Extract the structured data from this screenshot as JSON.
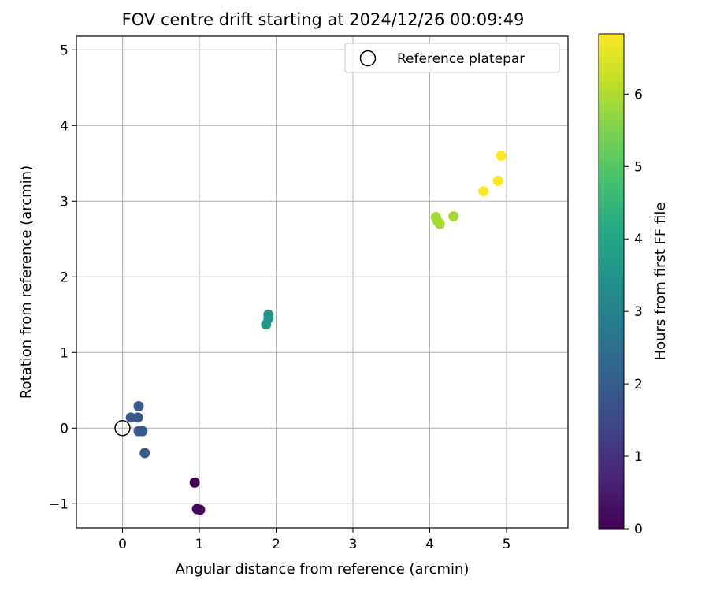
{
  "chart_data": {
    "type": "scatter",
    "title": "FOV centre drift starting at 2024/12/26 00:09:49",
    "xlabel": "Angular distance from reference (arcmin)",
    "ylabel": "Rotation from reference (arcmin)",
    "xlim": [
      -0.6,
      5.8
    ],
    "ylim": [
      -1.32,
      5.18
    ],
    "xticks": [
      0,
      1,
      2,
      3,
      4,
      5
    ],
    "yticks": [
      -1,
      0,
      1,
      2,
      3,
      4,
      5
    ],
    "xtick_labels": [
      "0",
      "1",
      "2",
      "3",
      "4",
      "5"
    ],
    "ytick_labels": [
      "−1",
      "0",
      "1",
      "2",
      "3",
      "4",
      "5"
    ],
    "grid": true,
    "legend": {
      "position": "top-right",
      "entries": [
        "Reference platepar"
      ]
    },
    "reference_point": {
      "x": 0,
      "y": 0
    },
    "colorbar": {
      "label": "Hours from first FF file",
      "range": [
        0,
        6.83
      ],
      "ticks": [
        0,
        1,
        2,
        3,
        4,
        5,
        6
      ],
      "tick_labels": [
        "0",
        "1",
        "2",
        "3",
        "4",
        "5",
        "6"
      ],
      "colormap": "viridis"
    },
    "points": [
      {
        "x": 0.94,
        "y": -0.72,
        "hours": 0.0
      },
      {
        "x": 0.97,
        "y": -1.07,
        "hours": 0.1
      },
      {
        "x": 1.01,
        "y": -1.08,
        "hours": 0.15
      },
      {
        "x": 0.21,
        "y": 0.29,
        "hours": 1.9
      },
      {
        "x": 0.11,
        "y": 0.14,
        "hours": 1.9
      },
      {
        "x": 0.2,
        "y": 0.14,
        "hours": 1.9
      },
      {
        "x": 0.21,
        "y": -0.04,
        "hours": 1.9
      },
      {
        "x": 0.26,
        "y": -0.04,
        "hours": 1.9
      },
      {
        "x": 0.29,
        "y": -0.33,
        "hours": 1.9
      },
      {
        "x": 1.9,
        "y": 1.5,
        "hours": 3.6
      },
      {
        "x": 1.9,
        "y": 1.45,
        "hours": 3.6
      },
      {
        "x": 1.87,
        "y": 1.37,
        "hours": 3.6
      },
      {
        "x": 4.08,
        "y": 2.79,
        "hours": 5.9
      },
      {
        "x": 4.1,
        "y": 2.74,
        "hours": 5.9
      },
      {
        "x": 4.13,
        "y": 2.7,
        "hours": 5.9
      },
      {
        "x": 4.31,
        "y": 2.8,
        "hours": 5.9
      },
      {
        "x": 4.7,
        "y": 3.13,
        "hours": 6.83
      },
      {
        "x": 4.89,
        "y": 3.27,
        "hours": 6.83
      },
      {
        "x": 4.93,
        "y": 3.6,
        "hours": 6.83
      }
    ]
  }
}
